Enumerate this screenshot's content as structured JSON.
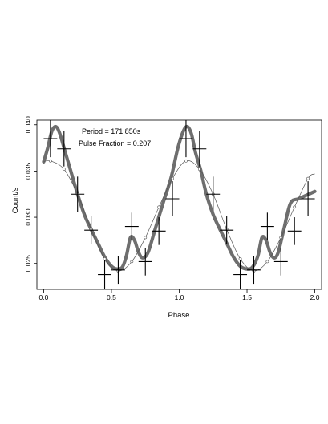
{
  "chart_data": {
    "type": "scatter",
    "title": "",
    "xlabel": "Phase",
    "ylabel": "Count/s",
    "xlim": [
      -0.05,
      2.05
    ],
    "ylim": [
      0.0222,
      0.0405
    ],
    "xticks": [
      "0.0",
      "0.5",
      "1.0",
      "1.5",
      "2.0"
    ],
    "xtick_values": [
      0.0,
      0.5,
      1.0,
      1.5,
      2.0
    ],
    "yticks": [
      "0.025",
      "0.030",
      "0.035",
      "0.040"
    ],
    "ytick_values": [
      0.025,
      0.03,
      0.035,
      0.04
    ],
    "grid": false,
    "annotations": [
      "Period = 171.850s",
      "Pulse Fraction = 0.207"
    ],
    "series": [
      {
        "kind": "data_with_errorbars",
        "color": "#000000",
        "x": [
          0.05,
          0.15,
          0.25,
          0.35,
          0.45,
          0.55,
          0.65,
          0.75,
          0.85,
          0.95,
          1.05,
          1.15,
          1.25,
          1.35,
          1.45,
          1.55,
          1.65,
          1.75,
          1.85,
          1.95
        ],
        "y": [
          0.0385,
          0.0374,
          0.0325,
          0.0286,
          0.0238,
          0.0243,
          0.029,
          0.0252,
          0.0285,
          0.032,
          0.0385,
          0.0374,
          0.0325,
          0.0286,
          0.0238,
          0.0243,
          0.029,
          0.0252,
          0.0285,
          0.032
        ],
        "xerr": 0.05,
        "yerr": [
          0.002,
          0.0019,
          0.0019,
          0.0015,
          0.0016,
          0.0015,
          0.0015,
          0.0015,
          0.0015,
          0.0019,
          0.002,
          0.0019,
          0.0019,
          0.0015,
          0.0016,
          0.0015,
          0.0015,
          0.0015,
          0.0015,
          0.0019
        ]
      },
      {
        "kind": "smooth_curve",
        "color": "#6e6e6e",
        "x": [
          0.0,
          0.03,
          0.06,
          0.09,
          0.12,
          0.16,
          0.2,
          0.25,
          0.3,
          0.35,
          0.4,
          0.45,
          0.5,
          0.54,
          0.58,
          0.61,
          0.64,
          0.67,
          0.7,
          0.73,
          0.77,
          0.82,
          0.88,
          0.94,
          0.99,
          1.03,
          1.06,
          1.09,
          1.12,
          1.16,
          1.2,
          1.25,
          1.3,
          1.35,
          1.4,
          1.45,
          1.5,
          1.54,
          1.58,
          1.61,
          1.64,
          1.67,
          1.7,
          1.73,
          1.77,
          1.82,
          1.88,
          1.94,
          2.0
        ],
        "y": [
          0.036,
          0.0375,
          0.0393,
          0.0398,
          0.039,
          0.037,
          0.035,
          0.0325,
          0.0303,
          0.0287,
          0.0272,
          0.0257,
          0.0247,
          0.0244,
          0.0246,
          0.0258,
          0.0278,
          0.0275,
          0.0262,
          0.0256,
          0.0262,
          0.0286,
          0.0315,
          0.0343,
          0.0375,
          0.0393,
          0.0398,
          0.039,
          0.037,
          0.035,
          0.0325,
          0.0303,
          0.0287,
          0.0272,
          0.0257,
          0.0247,
          0.0244,
          0.0246,
          0.0258,
          0.0278,
          0.0275,
          0.0262,
          0.0256,
          0.0262,
          0.0286,
          0.0315,
          0.032,
          0.0324,
          0.0328
        ]
      },
      {
        "kind": "model_curve",
        "color": "#555555",
        "x": [
          0.0,
          0.05,
          0.15,
          0.25,
          0.35,
          0.45,
          0.55,
          0.65,
          0.75,
          0.85,
          0.95,
          1.05,
          1.15,
          1.25,
          1.35,
          1.45,
          1.55,
          1.65,
          1.75,
          1.85,
          1.95,
          2.0
        ],
        "y": [
          0.036,
          0.0361,
          0.0352,
          0.0325,
          0.0287,
          0.0255,
          0.0242,
          0.0252,
          0.0278,
          0.0311,
          0.0342,
          0.0361,
          0.0352,
          0.0325,
          0.0287,
          0.0255,
          0.0242,
          0.0252,
          0.0278,
          0.0311,
          0.0342,
          0.0347
        ],
        "markers_x": [
          0.05,
          0.15,
          0.25,
          0.35,
          0.45,
          0.55,
          0.65,
          0.75,
          0.85,
          0.95,
          1.05,
          1.15,
          1.25,
          1.35,
          1.45,
          1.55,
          1.65,
          1.75,
          1.85,
          1.95
        ],
        "markers_y": [
          0.0361,
          0.0352,
          0.0325,
          0.0287,
          0.0255,
          0.0242,
          0.0252,
          0.0278,
          0.0311,
          0.0342,
          0.0361,
          0.0352,
          0.0325,
          0.0287,
          0.0255,
          0.0242,
          0.0252,
          0.0278,
          0.0311,
          0.0342
        ]
      }
    ]
  }
}
